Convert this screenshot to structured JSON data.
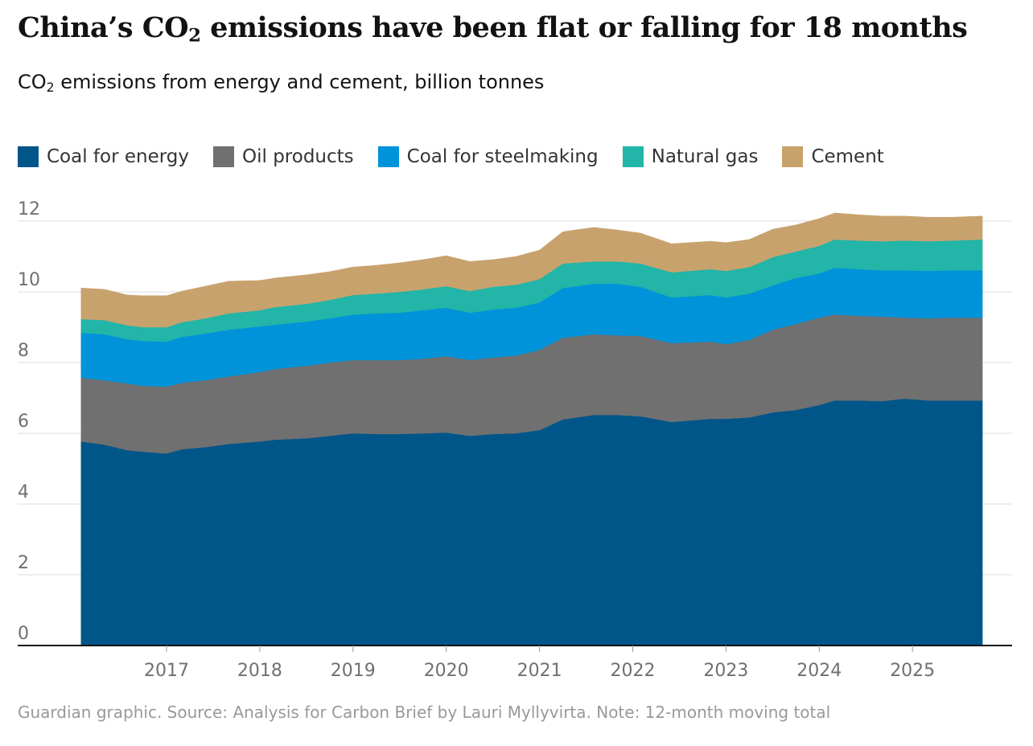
{
  "chart_data": {
    "type": "area",
    "stacked": true,
    "title": "China’s CO₂ emissions have been flat or falling for 18 months",
    "title_parts": [
      "China’s CO",
      "2",
      " emissions have been flat or falling for 18 months"
    ],
    "subtitle": "CO₂ emissions from energy and cement, billion tonnes",
    "subtitle_parts": [
      "CO",
      "2",
      " emissions from energy and cement, billion tonnes"
    ],
    "ylim": [
      0,
      12
    ],
    "yticks": [
      0,
      2,
      4,
      6,
      8,
      10,
      12
    ],
    "xticks": [
      "2017",
      "2018",
      "2019",
      "2020",
      "2021",
      "2022",
      "2023",
      "2024",
      "2025"
    ],
    "grid": true,
    "legend_placement": "top-left",
    "x": [
      "2016-02",
      "2016-05",
      "2016-08",
      "2016-10",
      "2017-01",
      "2017-03",
      "2017-06",
      "2017-09",
      "2018-01",
      "2018-03",
      "2018-07",
      "2018-10",
      "2019-01",
      "2019-04",
      "2019-07",
      "2019-10",
      "2020-01",
      "2020-04",
      "2020-07",
      "2020-10",
      "2021-01",
      "2021-04",
      "2021-08",
      "2021-11",
      "2022-02",
      "2022-06",
      "2022-11",
      "2023-01",
      "2023-04",
      "2023-07",
      "2023-10",
      "2024-01",
      "2024-03",
      "2024-06",
      "2024-09",
      "2024-12",
      "2025-03",
      "2025-06",
      "2025-10"
    ],
    "series": [
      {
        "name": "Coal for energy",
        "color": "#005689",
        "values": [
          5.77,
          5.68,
          5.52,
          5.48,
          5.43,
          5.55,
          5.61,
          5.7,
          5.77,
          5.82,
          5.86,
          5.93,
          6.0,
          5.98,
          5.98,
          6.0,
          6.02,
          5.93,
          5.98,
          6.0,
          6.09,
          6.39,
          6.52,
          6.52,
          6.48,
          6.32,
          6.41,
          6.41,
          6.45,
          6.59,
          6.66,
          6.8,
          6.93,
          6.93,
          6.91,
          6.98,
          6.93,
          6.93,
          6.93
        ]
      },
      {
        "name": "Oil products",
        "color": "#707070",
        "values": [
          1.8,
          1.82,
          1.89,
          1.86,
          1.89,
          1.88,
          1.89,
          1.91,
          1.96,
          2.0,
          2.05,
          2.07,
          2.07,
          2.09,
          2.09,
          2.11,
          2.16,
          2.14,
          2.16,
          2.2,
          2.27,
          2.31,
          2.28,
          2.25,
          2.27,
          2.23,
          2.18,
          2.11,
          2.19,
          2.34,
          2.43,
          2.47,
          2.43,
          2.39,
          2.39,
          2.29,
          2.32,
          2.34,
          2.34
        ]
      },
      {
        "name": "Coal for steelmaking",
        "color": "#0093d9",
        "values": [
          1.27,
          1.3,
          1.25,
          1.27,
          1.27,
          1.3,
          1.32,
          1.32,
          1.29,
          1.25,
          1.25,
          1.25,
          1.29,
          1.32,
          1.34,
          1.37,
          1.37,
          1.34,
          1.36,
          1.35,
          1.34,
          1.41,
          1.43,
          1.46,
          1.39,
          1.29,
          1.32,
          1.32,
          1.31,
          1.25,
          1.3,
          1.25,
          1.32,
          1.32,
          1.31,
          1.34,
          1.34,
          1.34,
          1.34
        ]
      },
      {
        "name": "Natural gas",
        "color": "#22b5a8",
        "values": [
          0.39,
          0.4,
          0.39,
          0.39,
          0.41,
          0.41,
          0.43,
          0.46,
          0.46,
          0.5,
          0.5,
          0.52,
          0.55,
          0.56,
          0.59,
          0.59,
          0.61,
          0.61,
          0.64,
          0.65,
          0.66,
          0.69,
          0.63,
          0.63,
          0.66,
          0.71,
          0.73,
          0.75,
          0.75,
          0.8,
          0.75,
          0.78,
          0.8,
          0.81,
          0.82,
          0.84,
          0.84,
          0.84,
          0.87
        ]
      },
      {
        "name": "Cement",
        "color": "#c8a26d",
        "values": [
          0.88,
          0.87,
          0.86,
          0.89,
          0.89,
          0.88,
          0.91,
          0.91,
          0.84,
          0.82,
          0.82,
          0.8,
          0.79,
          0.8,
          0.82,
          0.84,
          0.86,
          0.84,
          0.77,
          0.8,
          0.82,
          0.9,
          0.96,
          0.89,
          0.86,
          0.81,
          0.79,
          0.8,
          0.78,
          0.79,
          0.75,
          0.77,
          0.75,
          0.73,
          0.71,
          0.69,
          0.68,
          0.66,
          0.66
        ]
      }
    ],
    "footer": "Guardian graphic. Source: Analysis for Carbon Brief by Lauri Myllyvirta. Note: 12-month moving total"
  }
}
